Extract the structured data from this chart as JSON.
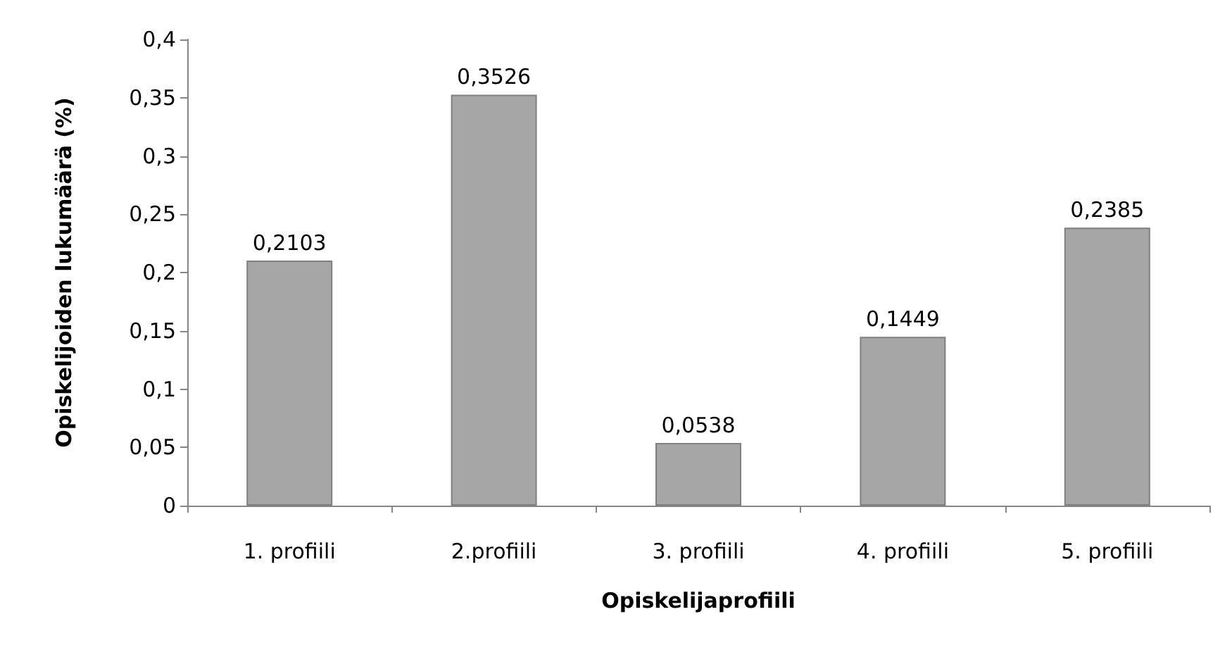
{
  "chart_data": {
    "type": "bar",
    "xlabel": "Opiskelijaprofiili",
    "ylabel": "Opiskelijoiden lukumäärä (%)",
    "categories": [
      "1. profiili",
      "2.profiili",
      "3. profiili",
      "4. profiili",
      "5. profiili"
    ],
    "values": [
      0.2103,
      0.3526,
      0.0538,
      0.1449,
      0.2385
    ],
    "value_labels": [
      "0,2103",
      "0,3526",
      "0,0538",
      "0,1449",
      "0,2385"
    ],
    "color": "#a6a6a6",
    "ylim": [
      0,
      0.4
    ],
    "yticks": [
      {
        "value": 0,
        "label": "0"
      },
      {
        "value": 0.05,
        "label": "0,05"
      },
      {
        "value": 0.1,
        "label": "0,1"
      },
      {
        "value": 0.15,
        "label": "0,15"
      },
      {
        "value": 0.2,
        "label": "0,2"
      },
      {
        "value": 0.25,
        "label": "0,25"
      },
      {
        "value": 0.3,
        "label": "0,3"
      },
      {
        "value": 0.35,
        "label": "0,35"
      },
      {
        "value": 0.4,
        "label": "0,4"
      }
    ],
    "grid": false
  }
}
